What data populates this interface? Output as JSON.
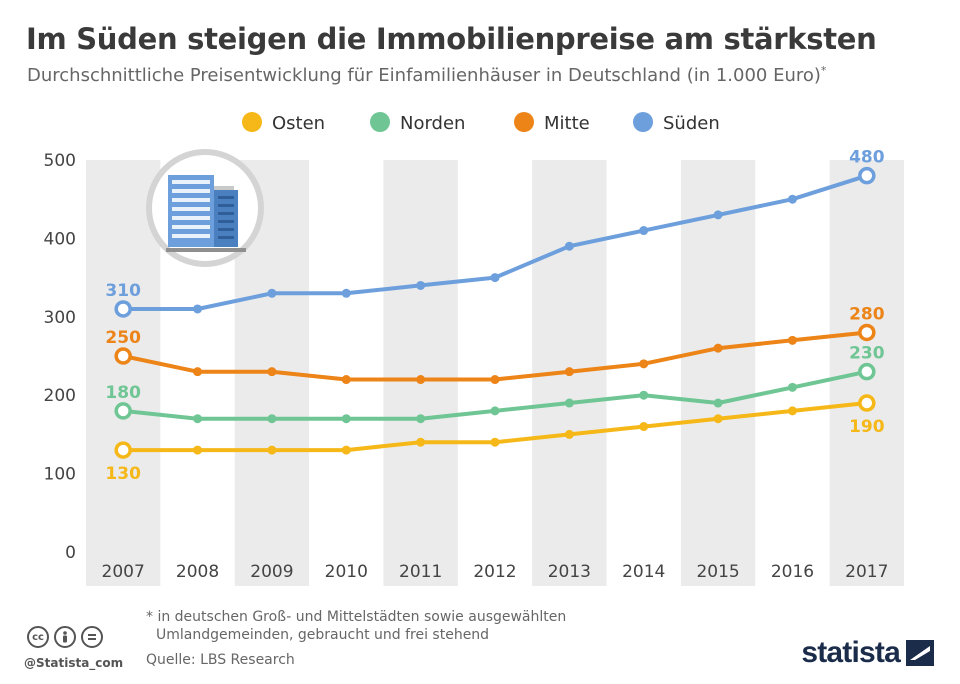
{
  "title": "Im Süden steigen die Immobilienpreise am stärksten",
  "subtitle": "Durchschnittliche Preisentwicklung für Einfamilienhäuser in Deutschland (in 1.000 Euro)",
  "subtitle_marker": "*",
  "footnote": {
    "line1": "* in deutschen Groß- und Mittelstädten sowie ausgewählten",
    "line2": "Umlandgemeinden, gebraucht und frei stehend"
  },
  "source": "Quelle: LBS Research",
  "handle": "@Statista_com",
  "brand": "statista",
  "license_icons": [
    "cc-icon",
    "by-icon",
    "equals-icon"
  ],
  "illustration_icon": "office-building-icon",
  "colors": {
    "Osten": "#f5b818",
    "Norden": "#6fc694",
    "Mitte": "#ec8418",
    "Süden": "#6d9fdc",
    "band": "#ebebeb",
    "axis_text": "#444444",
    "brand": "#1a2c4a"
  },
  "chart_data": {
    "type": "line",
    "title": "Im Süden steigen die Immobilienpreise am stärksten",
    "xlabel": "",
    "ylabel": "",
    "x": [
      "2007",
      "2008",
      "2009",
      "2010",
      "2011",
      "2012",
      "2013",
      "2014",
      "2015",
      "2016",
      "2017"
    ],
    "ylim": [
      0,
      500
    ],
    "yticks": [
      0,
      100,
      200,
      300,
      400,
      500
    ],
    "grid": false,
    "legend_position": "top",
    "series": [
      {
        "name": "Osten",
        "values": [
          130,
          130,
          130,
          130,
          140,
          140,
          150,
          160,
          170,
          180,
          190
        ],
        "labels": {
          "first": "130",
          "last": "190"
        },
        "label_side": {
          "first": "below",
          "last": "below"
        }
      },
      {
        "name": "Norden",
        "values": [
          180,
          170,
          170,
          170,
          170,
          180,
          190,
          200,
          190,
          210,
          230
        ],
        "labels": {
          "first": "180",
          "last": "230"
        },
        "label_side": {
          "first": "above",
          "last": "above"
        }
      },
      {
        "name": "Mitte",
        "values": [
          250,
          230,
          230,
          220,
          220,
          220,
          230,
          240,
          260,
          270,
          280
        ],
        "labels": {
          "first": "250",
          "last": "280"
        },
        "label_side": {
          "first": "above",
          "last": "above"
        }
      },
      {
        "name": "Süden",
        "values": [
          310,
          310,
          330,
          330,
          340,
          350,
          390,
          410,
          430,
          450,
          480
        ],
        "labels": {
          "first": "310",
          "last": "480"
        },
        "label_side": {
          "first": "above",
          "last": "above"
        }
      }
    ]
  }
}
